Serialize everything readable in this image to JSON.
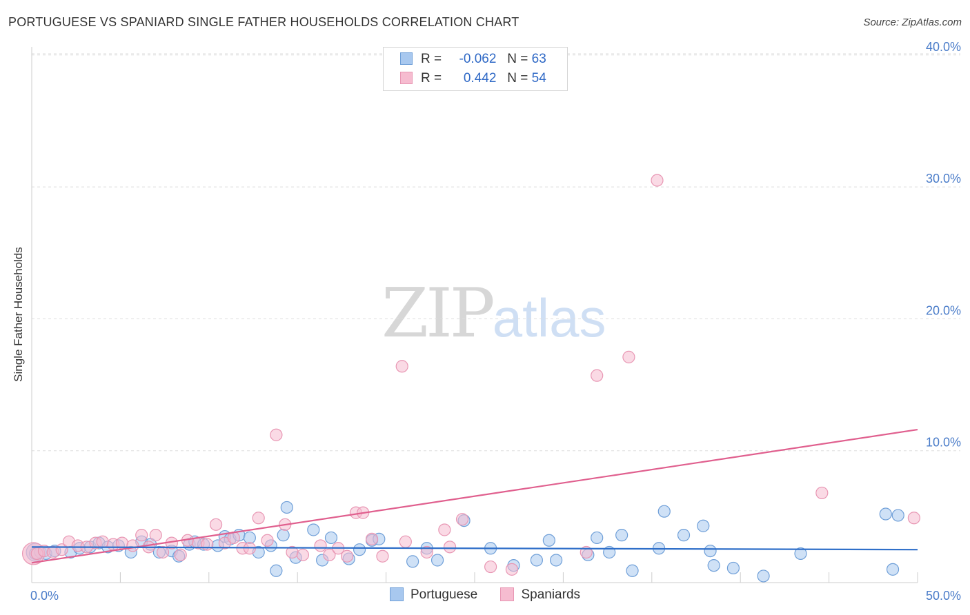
{
  "title": "PORTUGUESE VS SPANIARD SINGLE FATHER HOUSEHOLDS CORRELATION CHART",
  "source": "Source: ZipAtlas.com",
  "watermark": {
    "zip": "ZIP",
    "atlas": "atlas"
  },
  "legend": {
    "rows": [
      {
        "r_label": "R =",
        "r_value": "-0.062",
        "n_label": "N =",
        "n_value": "63"
      },
      {
        "r_label": "R =",
        "r_value": "0.442",
        "n_label": "N =",
        "n_value": "54"
      }
    ]
  },
  "colors": {
    "portuguese_fill": "#a8c8ef",
    "portuguese_stroke": "#6f9fd8",
    "portuguese_line": "#2f6fc9",
    "spaniards_fill": "#f6bcd0",
    "spaniards_stroke": "#e896b3",
    "spaniards_line": "#e05f8e",
    "tick_text": "#4a7cc9",
    "grid": "#dddddd"
  },
  "chart_data": {
    "type": "scatter",
    "title": "PORTUGUESE VS SPANIARD SINGLE FATHER HOUSEHOLDS CORRELATION CHART",
    "xlabel": "",
    "ylabel": "Single Father Households",
    "xlim": [
      0,
      50
    ],
    "ylim": [
      0,
      41
    ],
    "x_tick_labels": [
      "0.0%",
      "50.0%"
    ],
    "y_ticks": [
      10,
      20,
      30,
      40
    ],
    "y_tick_labels": [
      "10.0%",
      "20.0%",
      "30.0%",
      "40.0%"
    ],
    "grid": true,
    "legend_position": "bottom-center",
    "series": [
      {
        "name": "Portuguese",
        "r": -0.062,
        "n": 63,
        "trend": {
          "x": [
            0,
            50
          ],
          "y": [
            2.7,
            2.5
          ]
        },
        "points": [
          [
            0.2,
            2.2
          ],
          [
            0.5,
            2.3
          ],
          [
            0.8,
            2.2
          ],
          [
            1.3,
            2.4
          ],
          [
            2.2,
            2.3
          ],
          [
            2.7,
            2.6
          ],
          [
            3.3,
            2.7
          ],
          [
            3.8,
            3.0
          ],
          [
            4.3,
            2.7
          ],
          [
            4.9,
            2.8
          ],
          [
            5.6,
            2.3
          ],
          [
            6.2,
            3.1
          ],
          [
            6.7,
            2.9
          ],
          [
            7.2,
            2.3
          ],
          [
            7.9,
            2.4
          ],
          [
            8.3,
            2.0
          ],
          [
            8.9,
            2.9
          ],
          [
            9.2,
            3.1
          ],
          [
            9.7,
            2.9
          ],
          [
            10.5,
            2.8
          ],
          [
            10.9,
            3.5
          ],
          [
            11.2,
            3.3
          ],
          [
            11.7,
            3.6
          ],
          [
            12.3,
            3.4
          ],
          [
            12.8,
            2.3
          ],
          [
            13.5,
            2.8
          ],
          [
            13.8,
            0.9
          ],
          [
            14.2,
            3.6
          ],
          [
            14.4,
            5.7
          ],
          [
            14.9,
            1.9
          ],
          [
            15.9,
            4.0
          ],
          [
            16.4,
            1.7
          ],
          [
            16.9,
            3.4
          ],
          [
            17.9,
            1.8
          ],
          [
            18.5,
            2.5
          ],
          [
            19.2,
            3.2
          ],
          [
            19.6,
            3.3
          ],
          [
            21.5,
            1.6
          ],
          [
            22.3,
            2.6
          ],
          [
            22.9,
            1.7
          ],
          [
            24.4,
            4.7
          ],
          [
            25.9,
            2.6
          ],
          [
            27.2,
            1.3
          ],
          [
            28.5,
            1.7
          ],
          [
            29.2,
            3.2
          ],
          [
            29.6,
            1.7
          ],
          [
            31.4,
            2.1
          ],
          [
            31.9,
            3.4
          ],
          [
            32.6,
            2.3
          ],
          [
            33.3,
            3.6
          ],
          [
            33.9,
            0.9
          ],
          [
            35.4,
            2.6
          ],
          [
            35.7,
            5.4
          ],
          [
            36.8,
            3.6
          ],
          [
            37.9,
            4.3
          ],
          [
            38.3,
            2.4
          ],
          [
            38.5,
            1.3
          ],
          [
            39.6,
            1.1
          ],
          [
            41.3,
            0.5
          ],
          [
            43.4,
            2.2
          ],
          [
            48.2,
            5.2
          ],
          [
            48.6,
            1.0
          ],
          [
            48.9,
            5.1
          ]
        ]
      },
      {
        "name": "Spaniards",
        "r": 0.442,
        "n": 54,
        "trend": {
          "x": [
            0,
            50
          ],
          "y": [
            1.5,
            11.6
          ]
        },
        "points": [
          [
            0.3,
            2.2
          ],
          [
            0.7,
            2.4
          ],
          [
            1.2,
            2.3
          ],
          [
            1.7,
            2.5
          ],
          [
            2.1,
            3.1
          ],
          [
            2.6,
            2.8
          ],
          [
            3.1,
            2.7
          ],
          [
            3.6,
            3.0
          ],
          [
            4.0,
            3.1
          ],
          [
            4.6,
            2.9
          ],
          [
            5.1,
            3.0
          ],
          [
            5.7,
            2.8
          ],
          [
            6.2,
            3.6
          ],
          [
            6.6,
            2.7
          ],
          [
            7.0,
            3.6
          ],
          [
            7.4,
            2.3
          ],
          [
            7.9,
            3.0
          ],
          [
            8.4,
            2.1
          ],
          [
            8.8,
            3.2
          ],
          [
            9.4,
            3.0
          ],
          [
            9.9,
            2.9
          ],
          [
            10.4,
            4.4
          ],
          [
            10.9,
            3.0
          ],
          [
            11.4,
            3.4
          ],
          [
            11.9,
            2.6
          ],
          [
            12.3,
            2.6
          ],
          [
            12.8,
            4.9
          ],
          [
            13.3,
            3.2
          ],
          [
            13.8,
            11.2
          ],
          [
            14.3,
            4.4
          ],
          [
            14.7,
            2.3
          ],
          [
            15.3,
            2.1
          ],
          [
            16.3,
            2.8
          ],
          [
            16.8,
            2.1
          ],
          [
            17.3,
            2.6
          ],
          [
            17.8,
            2.0
          ],
          [
            18.3,
            5.3
          ],
          [
            18.7,
            5.3
          ],
          [
            19.2,
            3.3
          ],
          [
            19.8,
            2.0
          ],
          [
            20.9,
            16.4
          ],
          [
            21.1,
            3.1
          ],
          [
            22.3,
            2.3
          ],
          [
            23.3,
            4.0
          ],
          [
            23.6,
            2.7
          ],
          [
            24.3,
            4.8
          ],
          [
            25.9,
            1.2
          ],
          [
            27.1,
            1.0
          ],
          [
            31.3,
            2.3
          ],
          [
            31.9,
            15.7
          ],
          [
            33.7,
            17.1
          ],
          [
            35.3,
            30.5
          ],
          [
            44.6,
            6.8
          ],
          [
            49.8,
            4.9
          ]
        ]
      }
    ]
  },
  "bottom_legend": {
    "portuguese": "Portuguese",
    "spaniards": "Spaniards"
  }
}
